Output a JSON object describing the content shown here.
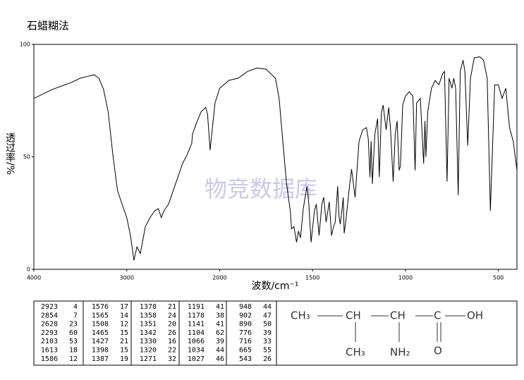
{
  "chart_data": {
    "type": "line",
    "title": "石蜡糊法",
    "x_label": "波数/cm⁻¹",
    "y_label": "透过率/%",
    "annotation": "物竞数据库",
    "color": "#000000",
    "xlim": [
      4000,
      400
    ],
    "xticks": [
      4000,
      3000,
      2000,
      1500,
      1000,
      500
    ],
    "ylim": [
      0,
      100
    ],
    "yticks": [
      0,
      50,
      100
    ],
    "x": [
      4000,
      3900,
      3800,
      3700,
      3600,
      3500,
      3400,
      3350,
      3300,
      3250,
      3200,
      3150,
      3100,
      3050,
      3000,
      2960,
      2923,
      2890,
      2854,
      2800,
      2750,
      2700,
      2660,
      2628,
      2600,
      2550,
      2500,
      2450,
      2400,
      2350,
      2300,
      2293,
      2250,
      2200,
      2150,
      2130,
      2103,
      2080,
      2050,
      2000,
      1950,
      1900,
      1850,
      1800,
      1750,
      1700,
      1680,
      1660,
      1640,
      1620,
      1613,
      1600,
      1586,
      1576,
      1565,
      1550,
      1530,
      1520,
      1508,
      1490,
      1480,
      1465,
      1450,
      1440,
      1427,
      1410,
      1398,
      1387,
      1378,
      1365,
      1358,
      1351,
      1342,
      1335,
      1330,
      1320,
      1300,
      1290,
      1271,
      1250,
      1230,
      1210,
      1200,
      1191,
      1185,
      1178,
      1165,
      1150,
      1141,
      1130,
      1120,
      1104,
      1090,
      1080,
      1066,
      1055,
      1045,
      1034,
      1027,
      1015,
      1000,
      980,
      960,
      948,
      940,
      920,
      902,
      895,
      890,
      880,
      860,
      840,
      820,
      800,
      790,
      776,
      765,
      750,
      740,
      730,
      716,
      705,
      690,
      680,
      665,
      650,
      630,
      600,
      580,
      560,
      543,
      530,
      520,
      500,
      480,
      460,
      440,
      420,
      400
    ],
    "values": [
      76,
      78,
      80,
      81.5,
      83,
      85,
      86,
      86.5,
      85,
      80,
      70,
      51,
      35,
      29,
      23,
      15,
      4,
      10,
      7,
      19,
      23,
      26,
      27,
      23,
      26,
      29,
      35,
      41,
      47,
      51,
      56,
      60,
      65,
      70,
      72,
      69,
      53,
      62,
      74,
      80.5,
      84,
      85,
      88,
      89.5,
      89,
      85,
      76,
      57,
      38,
      26,
      18,
      19,
      12,
      17,
      14,
      27,
      37,
      29,
      12,
      26,
      29,
      15,
      29,
      32,
      21,
      30,
      15,
      19,
      21,
      37,
      24,
      20,
      26,
      32,
      16,
      22,
      38,
      44.5,
      32,
      57,
      62,
      63,
      58,
      41,
      57,
      38,
      60,
      67,
      41,
      69.5,
      73,
      62,
      72,
      62,
      39,
      60,
      66,
      44,
      46,
      73,
      77,
      79,
      77,
      44,
      74,
      76,
      47,
      66,
      50,
      70,
      80.5,
      84,
      82,
      87,
      88,
      39,
      85,
      80.5,
      85,
      80.5,
      33,
      88,
      93,
      88,
      55,
      85,
      94,
      94.5,
      93,
      85,
      26,
      57,
      82,
      82,
      76,
      80.5,
      63,
      57,
      44
    ]
  },
  "peak_table": {
    "rows": [
      [
        2923,
        4
      ],
      [
        2854,
        7
      ],
      [
        2628,
        23
      ],
      [
        2293,
        60
      ],
      [
        2103,
        53
      ],
      [
        1613,
        18
      ],
      [
        1586,
        12
      ],
      [
        1576,
        17
      ],
      [
        1565,
        14
      ],
      [
        1508,
        12
      ],
      [
        1465,
        15
      ],
      [
        1427,
        21
      ],
      [
        1398,
        15
      ],
      [
        1387,
        19
      ],
      [
        1378,
        21
      ],
      [
        1358,
        24
      ],
      [
        1351,
        20
      ],
      [
        1342,
        26
      ],
      [
        1330,
        16
      ],
      [
        1320,
        22
      ],
      [
        1271,
        32
      ],
      [
        1191,
        41
      ],
      [
        1178,
        38
      ],
      [
        1141,
        41
      ],
      [
        1104,
        62
      ],
      [
        1066,
        39
      ],
      [
        1034,
        44
      ],
      [
        1027,
        46
      ],
      [
        948,
        44
      ],
      [
        902,
        47
      ],
      [
        890,
        50
      ],
      [
        776,
        39
      ],
      [
        716,
        33
      ],
      [
        665,
        55
      ],
      [
        543,
        26
      ]
    ]
  },
  "structure": {
    "labels": [
      "CH₃",
      "CH",
      "CH",
      "C",
      "OH",
      "CH₃",
      "NH₂",
      "O"
    ]
  }
}
